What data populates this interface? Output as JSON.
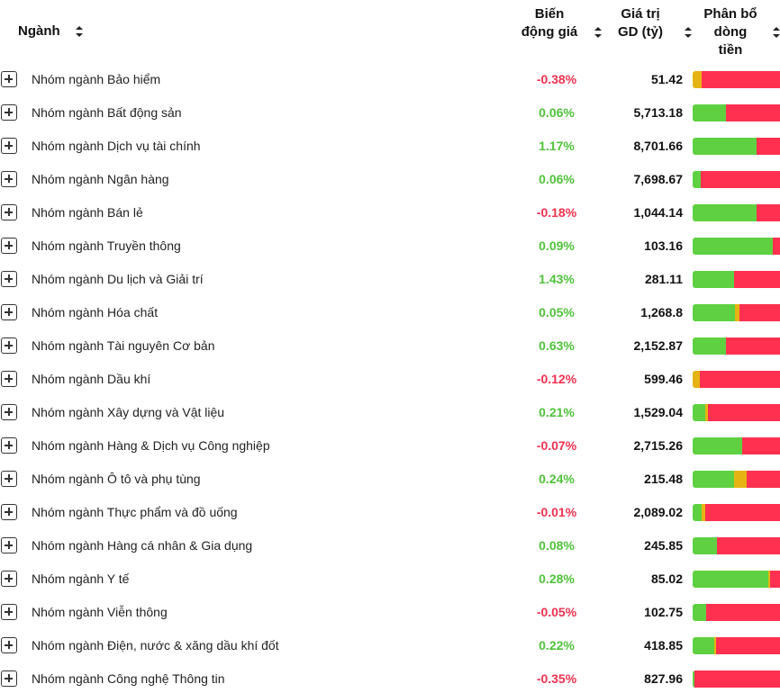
{
  "header": {
    "sector": "Ngành",
    "change_line1": "Biến",
    "change_line2": "động giá",
    "value_line1": "Giá trị",
    "value_line2": "GD (tỷ)",
    "flow_line1": "Phân bổ",
    "flow_line2": "dòng",
    "flow_line3": "tiền"
  },
  "colors": {
    "up": "#4fc23a",
    "down": "#f0314f",
    "buy": "#5fd042",
    "neutral": "#e5b414",
    "sell": "#ff3050"
  },
  "rows": [
    {
      "name": "Nhóm ngành Bảo hiểm",
      "change": "-0.38%",
      "dir": "down",
      "value": "51.42",
      "flow": [
        0,
        10,
        90
      ]
    },
    {
      "name": "Nhóm ngành Bất động sản",
      "change": "0.06%",
      "dir": "up",
      "value": "5,713.18",
      "flow": [
        38,
        0,
        62
      ]
    },
    {
      "name": "Nhóm ngành Dịch vụ tài chính",
      "change": "1.17%",
      "dir": "up",
      "value": "8,701.66",
      "flow": [
        73,
        0,
        27
      ]
    },
    {
      "name": "Nhóm ngành Ngân hàng",
      "change": "0.06%",
      "dir": "up",
      "value": "7,698.67",
      "flow": [
        9,
        0,
        91
      ]
    },
    {
      "name": "Nhóm ngành Bán lẻ",
      "change": "-0.18%",
      "dir": "down",
      "value": "1,044.14",
      "flow": [
        73,
        0,
        27
      ]
    },
    {
      "name": "Nhóm ngành Truyền thông",
      "change": "0.09%",
      "dir": "up",
      "value": "103.16",
      "flow": [
        92,
        0,
        8
      ]
    },
    {
      "name": "Nhóm ngành Du lịch và Giải trí",
      "change": "1.43%",
      "dir": "up",
      "value": "281.11",
      "flow": [
        47,
        0,
        53
      ]
    },
    {
      "name": "Nhóm ngành Hóa chất",
      "change": "0.05%",
      "dir": "up",
      "value": "1,268.8",
      "flow": [
        48,
        6,
        46
      ]
    },
    {
      "name": "Nhóm ngành Tài nguyên Cơ bản",
      "change": "0.63%",
      "dir": "up",
      "value": "2,152.87",
      "flow": [
        38,
        0,
        62
      ]
    },
    {
      "name": "Nhóm ngành Dầu khí",
      "change": "-0.12%",
      "dir": "down",
      "value": "599.46",
      "flow": [
        0,
        8,
        92
      ]
    },
    {
      "name": "Nhóm ngành Xây dựng và Vật liệu",
      "change": "0.21%",
      "dir": "up",
      "value": "1,529.04",
      "flow": [
        14,
        4,
        82
      ]
    },
    {
      "name": "Nhóm ngành Hàng & Dịch vụ Công nghiệp",
      "change": "-0.07%",
      "dir": "down",
      "value": "2,715.26",
      "flow": [
        57,
        0,
        43
      ]
    },
    {
      "name": "Nhóm ngành Ô tô và phụ tùng",
      "change": "0.24%",
      "dir": "up",
      "value": "215.48",
      "flow": [
        47,
        15,
        38
      ]
    },
    {
      "name": "Nhóm ngành Thực phẩm và đồ uống",
      "change": "-0.01%",
      "dir": "down",
      "value": "2,089.02",
      "flow": [
        10,
        4,
        86
      ]
    },
    {
      "name": "Nhóm ngành Hàng cá nhân & Gia dụng",
      "change": "0.08%",
      "dir": "up",
      "value": "245.85",
      "flow": [
        28,
        0,
        72
      ]
    },
    {
      "name": "Nhóm ngành Y tế",
      "change": "0.28%",
      "dir": "up",
      "value": "85.02",
      "flow": [
        87,
        2,
        11
      ]
    },
    {
      "name": "Nhóm ngành Viễn thông",
      "change": "-0.05%",
      "dir": "down",
      "value": "102.75",
      "flow": [
        15,
        0,
        85
      ]
    },
    {
      "name": "Nhóm ngành Điện, nước & xăng dầu khí đốt",
      "change": "0.22%",
      "dir": "up",
      "value": "418.85",
      "flow": [
        25,
        2,
        73
      ]
    },
    {
      "name": "Nhóm ngành Công nghệ Thông tin",
      "change": "-0.35%",
      "dir": "down",
      "value": "827.96",
      "flow": [
        2,
        0,
        98
      ]
    }
  ]
}
